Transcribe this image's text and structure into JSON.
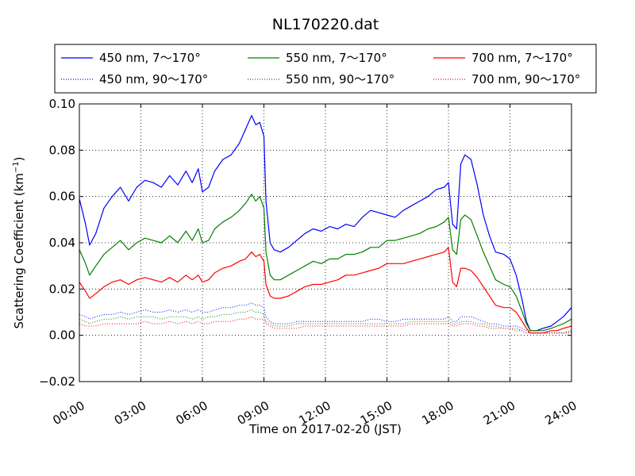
{
  "chart_data": {
    "type": "line",
    "title": "NL170220.dat",
    "xlabel": "Time on 2017-02-20 (JST)",
    "ylabel": "Scattering Coefficient (km",
    "ylabel_sup": "−1",
    "ylabel_close": ")",
    "xlim": [
      0,
      24
    ],
    "ylim": [
      -0.02,
      0.1
    ],
    "grid": true,
    "legend_position": "top",
    "x_ticks": [
      0,
      3,
      6,
      9,
      12,
      15,
      18,
      21,
      24
    ],
    "x_tick_labels": [
      "00:00",
      "03:00",
      "06:00",
      "09:00",
      "12:00",
      "15:00",
      "18:00",
      "21:00",
      "24:00"
    ],
    "y_ticks": [
      -0.02,
      0.0,
      0.02,
      0.04,
      0.06,
      0.08,
      0.1
    ],
    "y_tick_labels": [
      "−0.02",
      "0.00",
      "0.02",
      "0.04",
      "0.06",
      "0.08",
      "0.10"
    ],
    "x": [
      0.0,
      0.3,
      0.5,
      0.8,
      1.2,
      1.6,
      2.0,
      2.4,
      2.8,
      3.2,
      3.6,
      4.0,
      4.4,
      4.8,
      5.2,
      5.5,
      5.8,
      6.0,
      6.3,
      6.6,
      7.0,
      7.4,
      7.8,
      8.1,
      8.4,
      8.6,
      8.8,
      9.0,
      9.1,
      9.3,
      9.5,
      9.8,
      10.2,
      10.6,
      11.0,
      11.4,
      11.8,
      12.2,
      12.6,
      13.0,
      13.4,
      13.8,
      14.2,
      14.6,
      15.0,
      15.4,
      15.8,
      16.2,
      16.6,
      17.0,
      17.4,
      17.8,
      18.0,
      18.2,
      18.4,
      18.6,
      18.8,
      19.1,
      19.4,
      19.7,
      20.0,
      20.3,
      20.7,
      21.0,
      21.3,
      21.6,
      21.8,
      22.0,
      22.3,
      22.6,
      23.0,
      23.3,
      23.6,
      24.0
    ],
    "series": [
      {
        "name": "450 nm, 7～170°",
        "color": "#0000ff",
        "style": "solid",
        "values": [
          0.059,
          0.048,
          0.039,
          0.044,
          0.055,
          0.06,
          0.064,
          0.058,
          0.064,
          0.067,
          0.066,
          0.064,
          0.069,
          0.065,
          0.071,
          0.066,
          0.072,
          0.062,
          0.064,
          0.071,
          0.076,
          0.078,
          0.083,
          0.089,
          0.095,
          0.091,
          0.092,
          0.086,
          0.058,
          0.04,
          0.037,
          0.036,
          0.038,
          0.041,
          0.044,
          0.046,
          0.045,
          0.047,
          0.046,
          0.048,
          0.047,
          0.051,
          0.054,
          0.053,
          0.052,
          0.051,
          0.054,
          0.056,
          0.058,
          0.06,
          0.063,
          0.064,
          0.066,
          0.048,
          0.046,
          0.074,
          0.078,
          0.076,
          0.065,
          0.052,
          0.043,
          0.036,
          0.035,
          0.033,
          0.026,
          0.015,
          0.006,
          0.002,
          0.002,
          0.003,
          0.004,
          0.006,
          0.008,
          0.012
        ]
      },
      {
        "name": "450 nm, 90～170°",
        "color": "#0000ff",
        "style": "dotted",
        "values": [
          0.009,
          0.008,
          0.007,
          0.008,
          0.009,
          0.009,
          0.01,
          0.009,
          0.01,
          0.011,
          0.01,
          0.01,
          0.011,
          0.01,
          0.011,
          0.01,
          0.011,
          0.01,
          0.01,
          0.011,
          0.012,
          0.012,
          0.013,
          0.013,
          0.014,
          0.013,
          0.013,
          0.012,
          0.008,
          0.006,
          0.005,
          0.005,
          0.005,
          0.006,
          0.006,
          0.006,
          0.006,
          0.006,
          0.006,
          0.006,
          0.006,
          0.006,
          0.007,
          0.007,
          0.006,
          0.006,
          0.007,
          0.007,
          0.007,
          0.007,
          0.007,
          0.007,
          0.008,
          0.006,
          0.006,
          0.008,
          0.008,
          0.008,
          0.007,
          0.006,
          0.005,
          0.005,
          0.004,
          0.004,
          0.004,
          0.003,
          0.002,
          0.001,
          0.001,
          0.001,
          0.001,
          0.001,
          0.001,
          0.002
        ]
      },
      {
        "name": "550 nm, 7～170°",
        "color": "#008000",
        "style": "solid",
        "values": [
          0.037,
          0.031,
          0.026,
          0.03,
          0.035,
          0.038,
          0.041,
          0.037,
          0.04,
          0.042,
          0.041,
          0.04,
          0.043,
          0.04,
          0.045,
          0.041,
          0.046,
          0.04,
          0.041,
          0.046,
          0.049,
          0.051,
          0.054,
          0.057,
          0.061,
          0.058,
          0.06,
          0.055,
          0.036,
          0.026,
          0.024,
          0.024,
          0.026,
          0.028,
          0.03,
          0.032,
          0.031,
          0.033,
          0.033,
          0.035,
          0.035,
          0.036,
          0.038,
          0.038,
          0.041,
          0.041,
          0.042,
          0.043,
          0.044,
          0.046,
          0.047,
          0.049,
          0.051,
          0.037,
          0.035,
          0.05,
          0.052,
          0.05,
          0.043,
          0.036,
          0.03,
          0.024,
          0.022,
          0.021,
          0.017,
          0.01,
          0.005,
          0.002,
          0.002,
          0.002,
          0.003,
          0.004,
          0.005,
          0.007
        ]
      },
      {
        "name": "550 nm, 90～170°",
        "color": "#008000",
        "style": "dotted",
        "values": [
          0.007,
          0.006,
          0.005,
          0.006,
          0.007,
          0.007,
          0.008,
          0.007,
          0.008,
          0.008,
          0.008,
          0.007,
          0.008,
          0.008,
          0.008,
          0.007,
          0.008,
          0.007,
          0.008,
          0.008,
          0.009,
          0.009,
          0.01,
          0.01,
          0.011,
          0.01,
          0.01,
          0.009,
          0.006,
          0.005,
          0.004,
          0.004,
          0.004,
          0.005,
          0.005,
          0.005,
          0.005,
          0.005,
          0.005,
          0.005,
          0.005,
          0.005,
          0.005,
          0.005,
          0.005,
          0.005,
          0.005,
          0.006,
          0.006,
          0.006,
          0.006,
          0.006,
          0.006,
          0.005,
          0.005,
          0.006,
          0.006,
          0.006,
          0.005,
          0.005,
          0.004,
          0.004,
          0.003,
          0.003,
          0.003,
          0.002,
          0.001,
          0.001,
          0.001,
          0.001,
          0.001,
          0.001,
          0.001,
          0.002
        ]
      },
      {
        "name": "700 nm, 7～170°",
        "color": "#ff0000",
        "style": "solid",
        "values": [
          0.023,
          0.019,
          0.016,
          0.018,
          0.021,
          0.023,
          0.024,
          0.022,
          0.024,
          0.025,
          0.024,
          0.023,
          0.025,
          0.023,
          0.026,
          0.024,
          0.026,
          0.023,
          0.024,
          0.027,
          0.029,
          0.03,
          0.032,
          0.033,
          0.036,
          0.034,
          0.035,
          0.032,
          0.022,
          0.017,
          0.016,
          0.016,
          0.017,
          0.019,
          0.021,
          0.022,
          0.022,
          0.023,
          0.024,
          0.026,
          0.026,
          0.027,
          0.028,
          0.029,
          0.031,
          0.031,
          0.031,
          0.032,
          0.033,
          0.034,
          0.035,
          0.036,
          0.038,
          0.023,
          0.021,
          0.029,
          0.029,
          0.028,
          0.025,
          0.021,
          0.017,
          0.013,
          0.012,
          0.012,
          0.01,
          0.006,
          0.003,
          0.001,
          0.001,
          0.001,
          0.002,
          0.002,
          0.003,
          0.004
        ]
      },
      {
        "name": "700 nm, 90～170°",
        "color": "#ff0000",
        "style": "dotted",
        "values": [
          0.005,
          0.004,
          0.004,
          0.004,
          0.005,
          0.005,
          0.005,
          0.005,
          0.005,
          0.006,
          0.005,
          0.005,
          0.006,
          0.005,
          0.006,
          0.005,
          0.006,
          0.005,
          0.005,
          0.006,
          0.006,
          0.006,
          0.007,
          0.007,
          0.008,
          0.007,
          0.007,
          0.007,
          0.005,
          0.004,
          0.003,
          0.003,
          0.003,
          0.003,
          0.004,
          0.004,
          0.004,
          0.004,
          0.004,
          0.004,
          0.004,
          0.004,
          0.004,
          0.004,
          0.004,
          0.004,
          0.004,
          0.005,
          0.005,
          0.005,
          0.005,
          0.005,
          0.005,
          0.004,
          0.004,
          0.005,
          0.005,
          0.005,
          0.004,
          0.004,
          0.003,
          0.003,
          0.003,
          0.003,
          0.002,
          0.002,
          0.001,
          0.001,
          0.001,
          0.001,
          0.001,
          0.001,
          0.001,
          0.001
        ]
      }
    ]
  }
}
